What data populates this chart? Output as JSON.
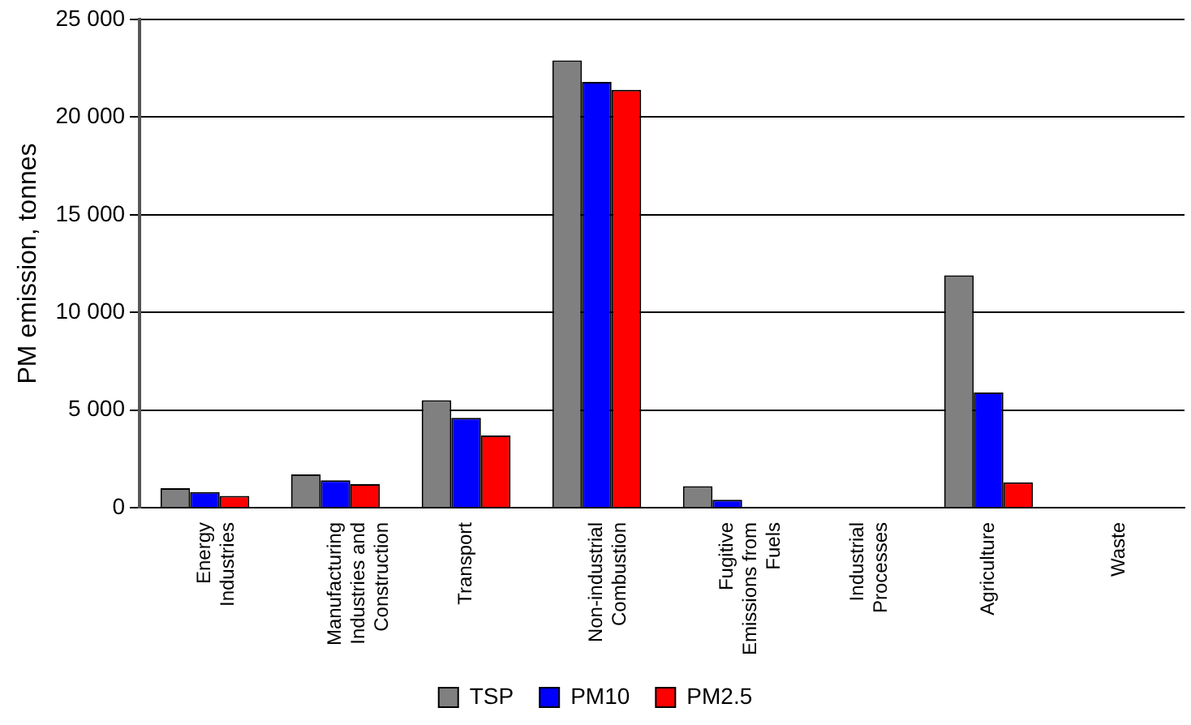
{
  "chart_data": {
    "type": "bar",
    "ylabel": "PM emission, tonnes",
    "categories": [
      "Energy Industries",
      "Manufacturing Industries and Construction",
      "Transport",
      "Non-industrial Combustion",
      "Fugitive Emissions from Fuels",
      "Industrial Processes",
      "Agriculture",
      "Waste"
    ],
    "series": [
      {
        "name": "TSP",
        "color": "#808080",
        "values": [
          1000,
          1700,
          5500,
          22900,
          1100,
          0,
          11900,
          0
        ]
      },
      {
        "name": "PM10",
        "color": "#0000ff",
        "values": [
          800,
          1400,
          4600,
          21800,
          400,
          0,
          5900,
          0
        ]
      },
      {
        "name": "PM2.5",
        "color": "#ff0000",
        "values": [
          600,
          1200,
          3700,
          21400,
          0,
          0,
          1300,
          0
        ]
      }
    ],
    "ylim": [
      0,
      25000
    ],
    "yticks": [
      {
        "value": 0,
        "label": "0"
      },
      {
        "value": 5000,
        "label": "5 000"
      },
      {
        "value": 10000,
        "label": "10 000"
      },
      {
        "value": 15000,
        "label": "15 000"
      },
      {
        "value": 20000,
        "label": "20 000"
      },
      {
        "value": 25000,
        "label": "25 000"
      }
    ],
    "grid": "y",
    "legend": "bottom"
  }
}
